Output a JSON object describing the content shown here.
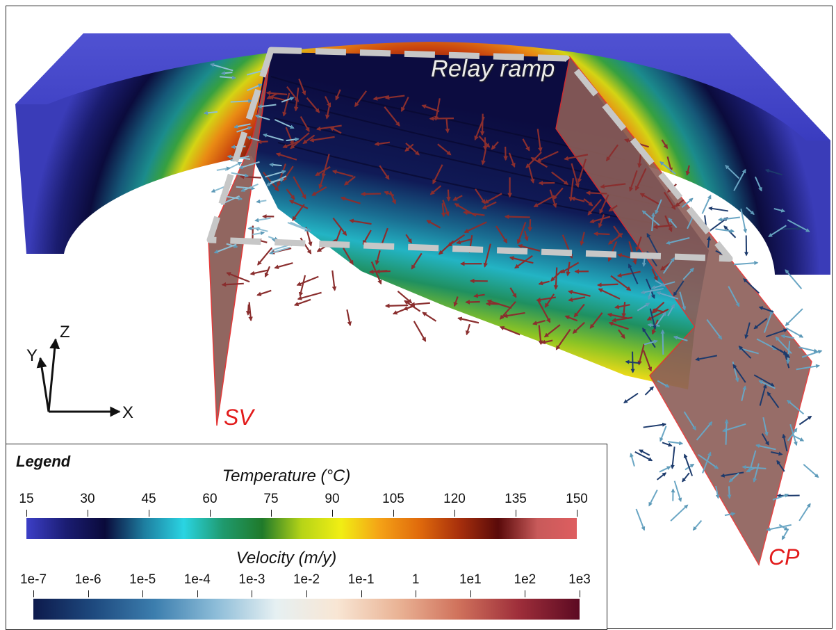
{
  "labels": {
    "relay_ramp": "Relay ramp",
    "sv": "SV",
    "cp": "CP"
  },
  "axes": {
    "x": "X",
    "y": "Y",
    "z": "Z"
  },
  "legend": {
    "title": "Legend",
    "temperature": {
      "title": "Temperature (°C)",
      "ticks": [
        "15",
        "30",
        "45",
        "60",
        "75",
        "90",
        "105",
        "120",
        "135",
        "150"
      ]
    },
    "velocity": {
      "title": "Velocity (m/y)",
      "ticks": [
        "1e-7",
        "1e-6",
        "1e-5",
        "1e-4",
        "1e-3",
        "1e-2",
        "1e-1",
        "1",
        "1e1",
        "1e2",
        "1e3"
      ]
    }
  },
  "colors": {
    "fault_fill": "#8c5e58",
    "fault_edge": "#e23030",
    "dash": "#c7c7c7",
    "temp_stops": [
      "#3c3fc7",
      "#1b1d73",
      "#0a0a3a",
      "#1e7ea0",
      "#2ad4e2",
      "#1f9a6e",
      "#1f7a2a",
      "#b6d417",
      "#f1ee14",
      "#f4a116",
      "#e06a0c",
      "#a8300c",
      "#5a0a0a",
      "#c85a5a",
      "#de5e60"
    ],
    "vel_stops": [
      "#0d1a4c",
      "#1e4a7f",
      "#3c7eae",
      "#8cbcd8",
      "#e6f0f2",
      "#f8e6d4",
      "#eab496",
      "#d0725c",
      "#9e2e3a",
      "#5c0a22"
    ]
  }
}
